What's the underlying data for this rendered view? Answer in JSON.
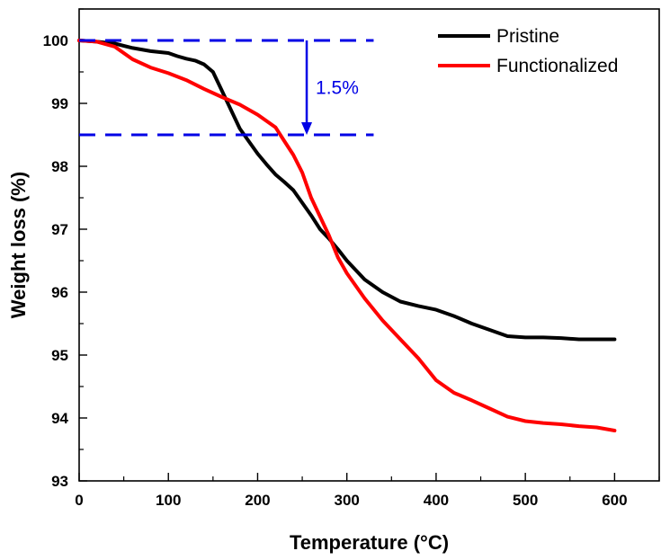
{
  "chart_data": {
    "type": "line",
    "xlabel": "Temperature (°C)",
    "ylabel": "Weight loss (%)",
    "xlim": [
      0,
      650
    ],
    "ylim": [
      93,
      100.5
    ],
    "xticks": [
      0,
      100,
      200,
      300,
      400,
      500,
      600
    ],
    "yticks": [
      93,
      94,
      95,
      96,
      97,
      98,
      99,
      100
    ],
    "xtick_labels": [
      "0",
      "100",
      "200",
      "300",
      "400",
      "500",
      "600"
    ],
    "ytick_labels": [
      "93",
      "94",
      "95",
      "96",
      "97",
      "98",
      "99",
      "100"
    ],
    "grid": false,
    "legend_position": "top-right",
    "series": [
      {
        "name": "Pristine",
        "color": "#000000",
        "x": [
          0,
          20,
          40,
          60,
          80,
          100,
          110,
          120,
          130,
          140,
          150,
          160,
          170,
          180,
          190,
          200,
          210,
          220,
          230,
          240,
          250,
          260,
          270,
          280,
          290,
          300,
          320,
          340,
          360,
          380,
          400,
          420,
          440,
          460,
          480,
          500,
          520,
          540,
          560,
          580,
          600
        ],
        "y": [
          100,
          99.98,
          99.95,
          99.88,
          99.83,
          99.8,
          99.75,
          99.71,
          99.68,
          99.62,
          99.5,
          99.2,
          98.9,
          98.6,
          98.4,
          98.2,
          98.03,
          97.87,
          97.75,
          97.62,
          97.42,
          97.22,
          97.0,
          96.85,
          96.68,
          96.5,
          96.2,
          96.0,
          95.85,
          95.78,
          95.72,
          95.62,
          95.5,
          95.4,
          95.3,
          95.28,
          95.28,
          95.27,
          95.25,
          95.25,
          95.25
        ]
      },
      {
        "name": "Functionalized",
        "color": "#ff0000",
        "x": [
          0,
          20,
          40,
          60,
          80,
          100,
          120,
          140,
          160,
          180,
          200,
          220,
          230,
          240,
          250,
          260,
          270,
          280,
          290,
          300,
          320,
          340,
          360,
          380,
          400,
          420,
          440,
          460,
          480,
          500,
          520,
          540,
          560,
          580,
          600
        ],
        "y": [
          100,
          99.98,
          99.9,
          99.7,
          99.57,
          99.48,
          99.37,
          99.23,
          99.1,
          98.98,
          98.82,
          98.62,
          98.4,
          98.18,
          97.9,
          97.5,
          97.2,
          96.9,
          96.55,
          96.3,
          95.9,
          95.55,
          95.25,
          94.95,
          94.6,
          94.4,
          94.28,
          94.15,
          94.02,
          93.95,
          93.92,
          93.9,
          93.87,
          93.85,
          93.8
        ]
      }
    ],
    "annotation": {
      "label": "1.5%",
      "color": "#0000e6",
      "upper_y": 100,
      "lower_y": 98.5,
      "x_start": 0,
      "x_end": 330,
      "arrow_x": 255
    }
  }
}
